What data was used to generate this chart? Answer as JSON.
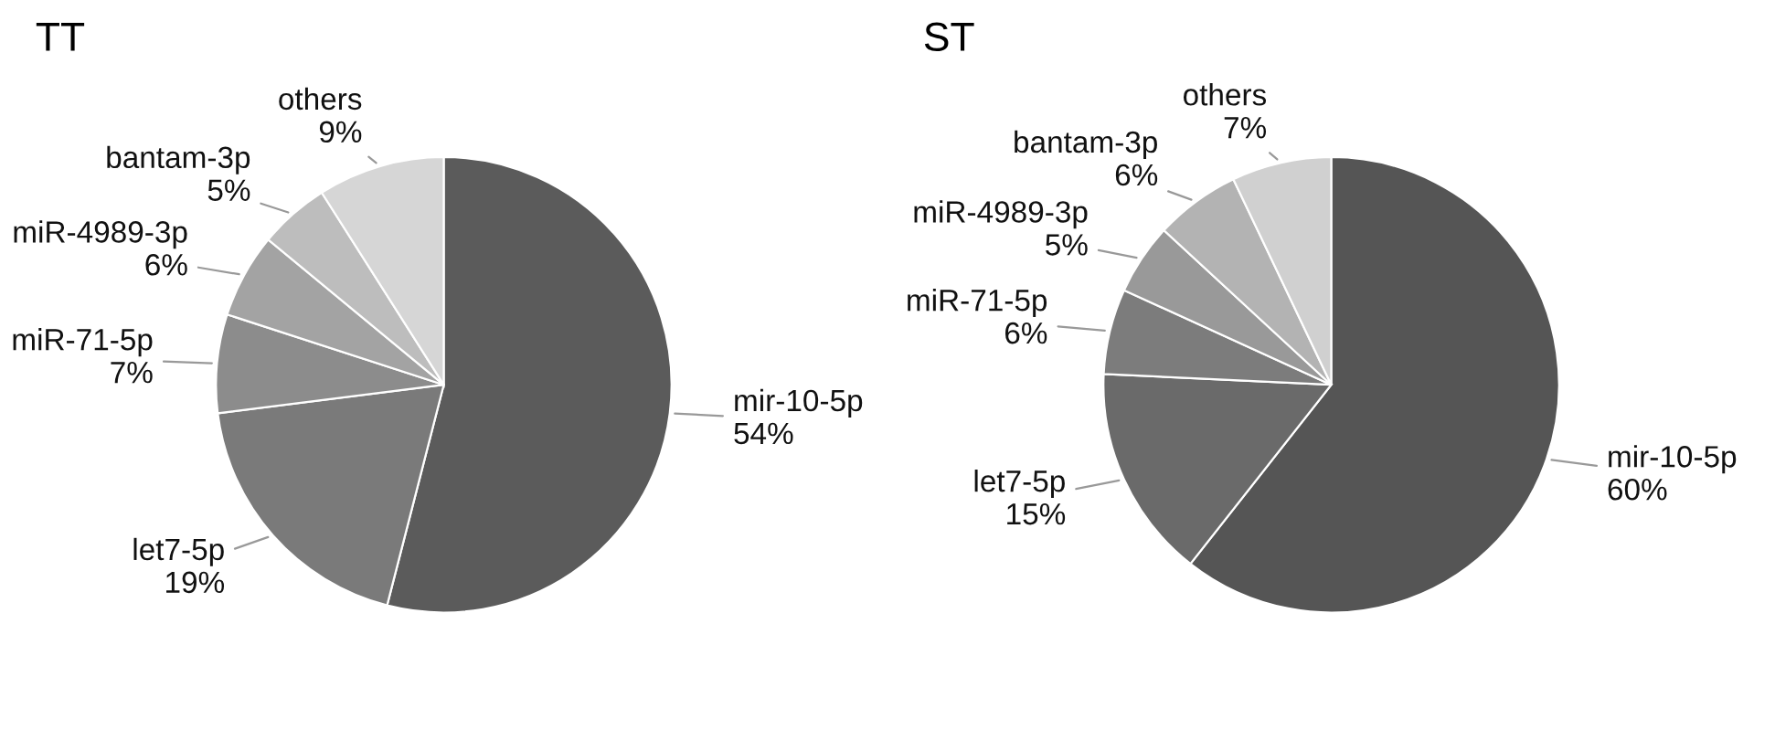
{
  "chart_data": [
    {
      "type": "pie",
      "title": "TT",
      "categories": [
        "mir-10-5p",
        "let7-5p",
        "miR-71-5p",
        "miR-4989-3p",
        "bantam-3p",
        "others"
      ],
      "values": [
        54,
        19,
        7,
        6,
        5,
        9
      ],
      "value_labels": [
        "54%",
        "19%",
        "7%",
        "6%",
        "5%",
        "9%"
      ],
      "colors": [
        "#5b5b5b",
        "#7a7a7a",
        "#8c8c8c",
        "#a3a3a3",
        "#bdbdbd",
        "#d6d6d6"
      ],
      "legend": false
    },
    {
      "type": "pie",
      "title": "ST",
      "categories": [
        "mir-10-5p",
        "let7-5p",
        "miR-71-5p",
        "miR-4989-3p",
        "bantam-3p",
        "others"
      ],
      "values": [
        60,
        15,
        6,
        5,
        6,
        7
      ],
      "value_labels": [
        "60%",
        "15%",
        "6%",
        "5%",
        "6%",
        "7%"
      ],
      "colors": [
        "#555555",
        "#6a6a6a",
        "#7c7c7c",
        "#999999",
        "#b3b3b3",
        "#d0d0d0"
      ],
      "legend": false
    }
  ]
}
